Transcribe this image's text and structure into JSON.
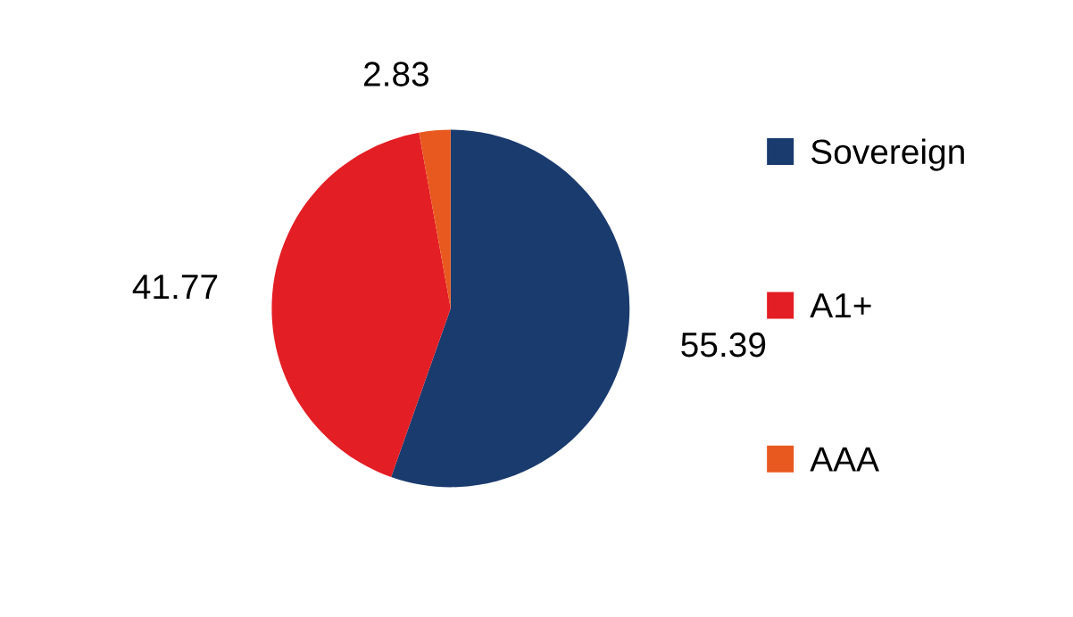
{
  "chart_data": {
    "type": "pie",
    "categories": [
      "Sovereign",
      "A1+",
      "AAA"
    ],
    "values": [
      55.39,
      41.77,
      2.83
    ],
    "colors": [
      "#1a3b6e",
      "#e31e24",
      "#e8591f"
    ],
    "data_labels": true,
    "legend": "right"
  }
}
